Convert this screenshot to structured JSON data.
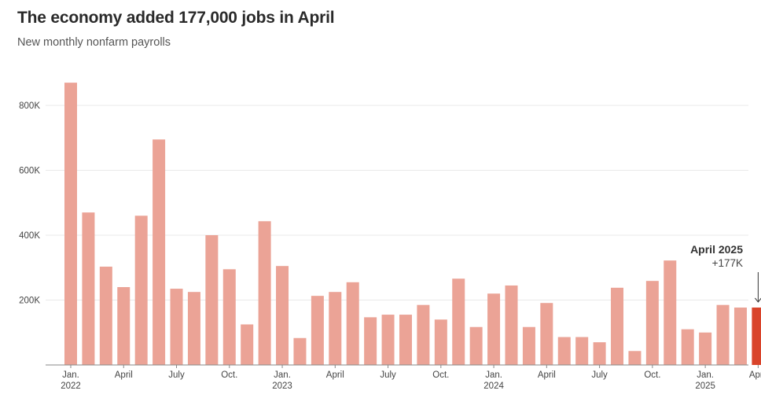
{
  "header": {
    "title": "The economy added 177,000 jobs in April",
    "subtitle": "New monthly nonfarm payrolls"
  },
  "annotation": {
    "label": "April 2025",
    "value": "+177K",
    "arrow_icon": "down-arrow-icon"
  },
  "colors": {
    "bar": "#eba396",
    "highlight": "#d9442b",
    "grid": "#e9e9e9",
    "baseline": "#888888"
  },
  "chart_data": {
    "type": "bar",
    "title": "The economy added 177,000 jobs in April",
    "subtitle": "New monthly nonfarm payrolls",
    "xlabel": "",
    "ylabel": "",
    "ylim": [
      0,
      900000
    ],
    "yticks": [
      {
        "value": 200000,
        "label": "200K"
      },
      {
        "value": 400000,
        "label": "400K"
      },
      {
        "value": 600000,
        "label": "600K"
      },
      {
        "value": 800000,
        "label": "800K"
      }
    ],
    "grid": true,
    "highlight_index": 39,
    "categories": [
      "2022-01",
      "2022-02",
      "2022-03",
      "2022-04",
      "2022-05",
      "2022-06",
      "2022-07",
      "2022-08",
      "2022-09",
      "2022-10",
      "2022-11",
      "2022-12",
      "2023-01",
      "2023-02",
      "2023-03",
      "2023-04",
      "2023-05",
      "2023-06",
      "2023-07",
      "2023-08",
      "2023-09",
      "2023-10",
      "2023-11",
      "2023-12",
      "2024-01",
      "2024-02",
      "2024-03",
      "2024-04",
      "2024-05",
      "2024-06",
      "2024-07",
      "2024-08",
      "2024-09",
      "2024-10",
      "2024-11",
      "2024-12",
      "2025-01",
      "2025-02",
      "2025-03",
      "2025-04"
    ],
    "values": [
      870000,
      470000,
      303000,
      240000,
      460000,
      695000,
      235000,
      225000,
      400000,
      295000,
      125000,
      443000,
      305000,
      83000,
      213000,
      225000,
      255000,
      147000,
      155000,
      155000,
      185000,
      140000,
      266000,
      117000,
      220000,
      245000,
      117000,
      191000,
      86000,
      86000,
      70000,
      238000,
      43000,
      259000,
      322000,
      110000,
      100000,
      185000,
      177000,
      177000
    ],
    "x_tick_labels": [
      {
        "index": 0,
        "line1": "Jan.",
        "line2": "2022"
      },
      {
        "index": 3,
        "line1": "April",
        "line2": ""
      },
      {
        "index": 6,
        "line1": "July",
        "line2": ""
      },
      {
        "index": 9,
        "line1": "Oct.",
        "line2": ""
      },
      {
        "index": 12,
        "line1": "Jan.",
        "line2": "2023"
      },
      {
        "index": 15,
        "line1": "April",
        "line2": ""
      },
      {
        "index": 18,
        "line1": "July",
        "line2": ""
      },
      {
        "index": 21,
        "line1": "Oct.",
        "line2": ""
      },
      {
        "index": 24,
        "line1": "Jan.",
        "line2": "2024"
      },
      {
        "index": 27,
        "line1": "April",
        "line2": ""
      },
      {
        "index": 30,
        "line1": "July",
        "line2": ""
      },
      {
        "index": 33,
        "line1": "Oct.",
        "line2": ""
      },
      {
        "index": 36,
        "line1": "Jan.",
        "line2": "2025"
      },
      {
        "index": 39,
        "line1": "April",
        "line2": ""
      }
    ]
  }
}
